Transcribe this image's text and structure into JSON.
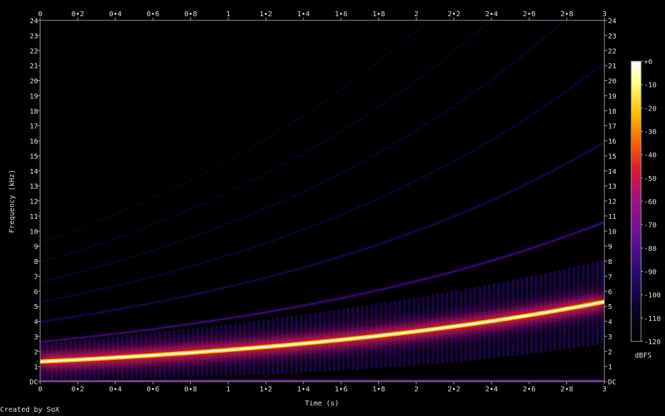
{
  "credit": "Created by SoX",
  "chart_data": {
    "type": "heatmap",
    "title": "",
    "xlabel": "Time (s)",
    "ylabel": "Frequency (kHz)",
    "colorbar_label": "dBFS",
    "xlim": [
      0,
      3
    ],
    "ylim": [
      0,
      24
    ],
    "x_ticks": [
      0,
      0.2,
      0.4,
      0.6,
      0.8,
      1,
      1.2,
      1.4,
      1.6,
      1.8,
      2,
      2.2,
      2.4,
      2.6,
      2.8,
      3
    ],
    "x_tick_labels": [
      "0",
      "0•2",
      "0•4",
      "0•6",
      "0•8",
      "1",
      "1•2",
      "1•4",
      "1•6",
      "1•8",
      "2",
      "2•2",
      "2•4",
      "2•6",
      "2•8",
      "3"
    ],
    "y_ticks": [
      0,
      1,
      2,
      3,
      4,
      5,
      6,
      7,
      8,
      9,
      10,
      11,
      12,
      13,
      14,
      15,
      16,
      17,
      18,
      19,
      20,
      21,
      22,
      23,
      24
    ],
    "y_tick_labels": [
      "DC",
      "1",
      "2",
      "3",
      "4",
      "5",
      "6",
      "7",
      "8",
      "9",
      "10",
      "11",
      "12",
      "13",
      "14",
      "15",
      "16",
      "17",
      "18",
      "19",
      "20",
      "21",
      "22",
      "23",
      "24"
    ],
    "colorbar_ticks": [
      0,
      -10,
      -20,
      -30,
      -40,
      -50,
      -60,
      -70,
      -80,
      -90,
      -100,
      -110,
      -120
    ],
    "colorbar_tick_labels": [
      "+0",
      "-10",
      "-20",
      "-30",
      "-40",
      "-50",
      "-60",
      "-70",
      "-80",
      "-90",
      "-100",
      "-110",
      "-120"
    ],
    "colorbar_range_dBFS": [
      -120,
      0
    ],
    "series": [
      {
        "harmonic": 1,
        "x": [
          0,
          1,
          2,
          3
        ],
        "y": [
          1.32,
          2.02,
          3.28,
          5.3
        ],
        "level_dBFS": 0
      },
      {
        "harmonic": 2,
        "x": [
          0,
          1,
          2,
          3
        ],
        "y": [
          2.64,
          4.04,
          6.56,
          10.6
        ],
        "level_dBFS": -85
      },
      {
        "harmonic": 3,
        "x": [
          0,
          1,
          2,
          3
        ],
        "y": [
          3.96,
          6.06,
          9.84,
          15.9
        ],
        "level_dBFS": -98
      },
      {
        "harmonic": 4,
        "x": [
          0,
          1,
          2,
          3
        ],
        "y": [
          5.28,
          8.08,
          13.12,
          21.2
        ],
        "level_dBFS": -103
      },
      {
        "harmonic": 5,
        "x": [
          0,
          1,
          2,
          3
        ],
        "y": [
          6.6,
          10.1,
          16.4,
          26.5
        ],
        "level_dBFS": -106
      },
      {
        "harmonic": 6,
        "x": [
          0,
          1,
          2,
          3
        ],
        "y": [
          7.92,
          12.12,
          19.68,
          31.8
        ],
        "level_dBFS": -109
      },
      {
        "harmonic": 7,
        "x": [
          0,
          1,
          2,
          3
        ],
        "y": [
          9.24,
          14.14,
          22.96,
          37.1
        ],
        "level_dBFS": -111
      },
      {
        "harmonic": 8,
        "x": [
          0,
          1,
          2,
          3
        ],
        "y": [
          10.56,
          16.16,
          26.24,
          42.4
        ],
        "level_dBFS": -113
      }
    ],
    "grid": false,
    "colorbar_placement": "right"
  },
  "colors": {
    "background": "#000000",
    "frame": "#a0a0a0",
    "colormap": [
      "#000000",
      "#0b0428",
      "#2a0a72",
      "#6a10a0",
      "#a8107e",
      "#e01a2a",
      "#ff6a00",
      "#ffc200",
      "#ffff80",
      "#ffffff"
    ]
  }
}
